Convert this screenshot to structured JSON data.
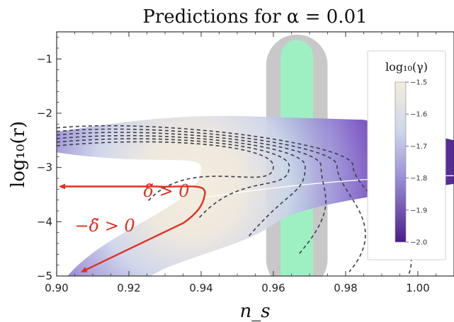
{
  "chart_data": {
    "type": "contour",
    "title": "Predictions for α = 0.01",
    "xlabel": "n_s",
    "ylabel": "log₁₀(r)",
    "xlim": [
      0.9,
      1.01
    ],
    "ylim": [
      -5,
      -0.5
    ],
    "x_ticks": [
      0.9,
      0.92,
      0.94,
      0.96,
      0.98,
      1.0
    ],
    "x_tick_labels": [
      "0.90",
      "0.92",
      "0.94",
      "0.96",
      "0.98",
      "1.00"
    ],
    "y_ticks": [
      -5,
      -4,
      -3,
      -2,
      -1
    ],
    "y_tick_labels": [
      "−5",
      "−4",
      "−3",
      "−2",
      "−1"
    ],
    "colorbar": {
      "label": "log₁₀(γ)",
      "min": -2.0,
      "max": -1.5,
      "ticks": [
        -1.5,
        -1.6,
        -1.7,
        -1.8,
        -1.9,
        -2.0
      ],
      "tick_labels": [
        "−1.5",
        "−1.6",
        "−1.7",
        "−1.8",
        "−1.9",
        "−2.0"
      ],
      "colors": {
        "low": "#4b1c8c",
        "mid": "#9a8fd6",
        "high": "#f3ecdc"
      },
      "placement": "top-right"
    },
    "observational_band": {
      "inner_color": "#9ef0c2",
      "outer_color": "#c8c8c8",
      "inner_ns_range": [
        0.962,
        0.971
      ],
      "outer_ns_range": [
        0.958,
        0.975
      ],
      "inner_logr_max": -0.65,
      "outer_logr_max": -0.55
    },
    "region": {
      "upper_boundary": [
        [
          0.9,
          -2.35
        ],
        [
          0.95,
          -2.05
        ],
        [
          0.985,
          -2.12
        ],
        [
          1.01,
          -2.5
        ]
      ],
      "lower_boundary": [
        [
          0.926,
          -5.0
        ],
        [
          0.96,
          -4.05
        ],
        [
          0.985,
          -3.58
        ],
        [
          1.01,
          -3.3
        ]
      ],
      "inner_boundary": [
        [
          0.9,
          -2.72
        ],
        [
          0.94,
          -3.0
        ],
        [
          0.9,
          -4.6
        ],
        [
          0.903,
          -5.0
        ]
      ]
    },
    "annotations": [
      {
        "label": "δ̃ > 0",
        "arrow_from": [
          0.941,
          -3.5
        ],
        "arrow_to": [
          0.901,
          -3.35
        ],
        "color": "#e03020"
      },
      {
        "label": "−δ̃ > 0",
        "arrow_from": [
          0.941,
          -3.5
        ],
        "arrow_to": [
          0.907,
          -4.92
        ],
        "color": "#e03020"
      }
    ],
    "dashed_contours": 6,
    "grid": false
  }
}
